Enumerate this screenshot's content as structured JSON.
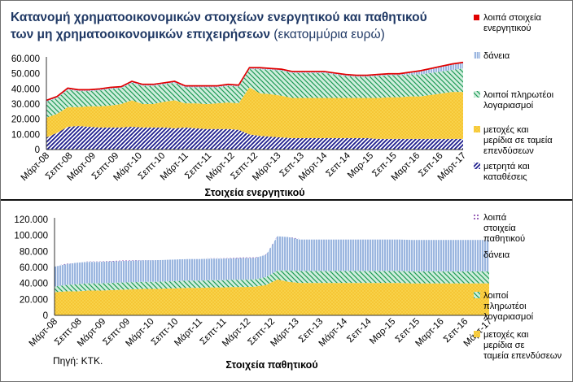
{
  "title": {
    "line1": "Κατανομή χρηματοοικονομικών  στοιχείων ενεργητικού και παθητικού",
    "line2": "των μη χρηματοοικονομικών  επιχειρήσεων",
    "unit": "(εκατομμύρια ευρώ)"
  },
  "source": "Πηγή: ΚΤΚ.",
  "colors": {
    "red": "#e00000",
    "green_fill": "#cfeedd",
    "green_hatch": "#1e9a55",
    "blue_fill": "#e7eefa",
    "blue_hatch": "#4f7fc4",
    "yellow_fill": "#f8d24a",
    "yellow_dots": "#f2a700",
    "navy_fill": "#ffffff",
    "navy_hatch": "#1e1e8e",
    "purple_dot": "#7a2fa1"
  },
  "chart_data": [
    {
      "type": "area",
      "stacked": true,
      "xlabel": "Στοιχεία ενεργητικού",
      "ylim": [
        0,
        60000
      ],
      "yticks": [
        "0",
        "10.000",
        "20.000",
        "30.000",
        "40.000",
        "50.000",
        "60.000"
      ],
      "xtick_labels": [
        "Μάρτ-08",
        "Σεπτ-08",
        "Μάρτ-09",
        "Σεπτ-09",
        "Μάρτ-10",
        "Σεπτ-10",
        "Μάρτ-11",
        "Σεπτ-11",
        "Μάρτ-12",
        "Σεπτ-12",
        "Μάρτ-13",
        "Σεπ-13",
        "Μάρτ-14",
        "Σεπ-14",
        "Μαρ-15",
        "Σεπ-15",
        "Μαρτ-16",
        "Σεπ-16",
        "Μάρτ-17"
      ],
      "series": [
        {
          "name": "μετρητά και καταθέσεις",
          "values": [
            8000,
            11000,
            15000,
            15500,
            15000,
            14500,
            14500,
            14500,
            15000,
            14500,
            14500,
            14500,
            14000,
            14500,
            14000,
            13500,
            13500,
            13500,
            13000,
            10000,
            9000,
            8500,
            8000,
            7500,
            7500,
            7500,
            7500,
            7500,
            7500,
            7500,
            7500,
            7000,
            7000,
            7000,
            7000,
            7000,
            7000,
            7000,
            7000,
            7000
          ]
        },
        {
          "name": "μετοχές και μερίδια σε ταμεία επενδύσεων",
          "values": [
            13000,
            12500,
            13000,
            12500,
            13500,
            14000,
            14500,
            15500,
            17500,
            15500,
            15500,
            17000,
            18500,
            16000,
            16500,
            16500,
            17000,
            17500,
            17500,
            31000,
            28000,
            28000,
            27500,
            26500,
            26500,
            26500,
            26500,
            26500,
            26500,
            26500,
            26500,
            27000,
            27500,
            27500,
            28000,
            28000,
            29000,
            30000,
            31000,
            31000
          ]
        },
        {
          "name": "λοιποί πληρωτέοι λογαριασμοί",
          "values": [
            10500,
            10500,
            11500,
            10500,
            10000,
            10500,
            11000,
            10500,
            11500,
            12000,
            12000,
            11500,
            11500,
            10500,
            10500,
            11000,
            10500,
            11000,
            11000,
            12000,
            16000,
            16000,
            16500,
            16500,
            16500,
            16500,
            16500,
            15500,
            14500,
            14000,
            14000,
            14500,
            14500,
            14500,
            14500,
            14500,
            14500,
            14500,
            14500,
            15500
          ]
        },
        {
          "name": "δάνεια",
          "values": [
            500,
            500,
            500,
            500,
            500,
            500,
            500,
            500,
            500,
            500,
            500,
            500,
            500,
            500,
            500,
            500,
            500,
            500,
            500,
            500,
            500,
            500,
            500,
            500,
            500,
            500,
            500,
            500,
            500,
            500,
            500,
            500,
            500,
            500,
            1000,
            2000,
            2500,
            3000,
            3500,
            3500
          ]
        },
        {
          "name": "λοιπά στοιχεία ενεργητικού",
          "values": [
            500,
            500,
            500,
            500,
            500,
            500,
            500,
            500,
            500,
            500,
            500,
            500,
            500,
            500,
            500,
            500,
            500,
            500,
            500,
            500,
            500,
            500,
            500,
            500,
            500,
            500,
            500,
            500,
            500,
            500,
            500,
            500,
            500,
            500,
            500,
            500,
            500,
            500,
            500,
            500
          ]
        }
      ]
    },
    {
      "type": "area",
      "stacked": true,
      "xlabel": "Στοιχεία παθητικού",
      "ylim": [
        0,
        120000
      ],
      "yticks": [
        "0",
        "20.000",
        "40.000",
        "60.000",
        "80.000",
        "100.000",
        "120.000"
      ],
      "xtick_labels": [
        "Μάρτ-08",
        "Σεπτ-08",
        "Μάρτ-09",
        "Σεπτ-09",
        "Μάρτ-10",
        "Σεπτ-10",
        "Μάρτ-11",
        "Σεπτ-11",
        "Μάρτ-12",
        "Σεπτ-12",
        "Μάρτ-13",
        "Σεπ-13",
        "Μάρτ-14",
        "Σεπ-14",
        "Μαρ-15",
        "Σεπ-15",
        "Μαρτ-16",
        "Σεπ-16",
        "Μάρτ-17"
      ],
      "series": [
        {
          "name": "μετοχές και μερίδια σε ταμεία επενδύσεων",
          "values": [
            29000,
            30000,
            30000,
            31000,
            31000,
            31500,
            32000,
            32500,
            33000,
            33000,
            33500,
            34000,
            34500,
            34500,
            35000,
            35000,
            35500,
            35500,
            36000,
            38000,
            45000,
            42000,
            40500,
            40500,
            40500,
            40500,
            40500,
            40500,
            40500,
            40500,
            40500,
            40500,
            40000,
            40000,
            40000,
            40000,
            40000,
            40000,
            40000,
            40000
          ]
        },
        {
          "name": "λοιποί πληρωτέοι λογαριασμοί",
          "values": [
            7000,
            8000,
            9000,
            9000,
            9000,
            9000,
            9000,
            9000,
            9000,
            9000,
            9000,
            9000,
            9000,
            9000,
            9000,
            9000,
            9000,
            9000,
            9000,
            10000,
            11000,
            14000,
            15000,
            15000,
            15000,
            15000,
            15000,
            15000,
            15000,
            15000,
            15000,
            15000,
            15000,
            15000,
            15000,
            15000,
            15000,
            15000,
            15000,
            15000
          ]
        },
        {
          "name": "δάνεια",
          "values": [
            25000,
            26000,
            27000,
            27000,
            27000,
            27000,
            27000,
            27000,
            27000,
            27000,
            27000,
            27000,
            27000,
            27000,
            27000,
            27000,
            27000,
            27500,
            27000,
            28000,
            43000,
            42000,
            39500,
            39500,
            39500,
            39500,
            39500,
            39500,
            39500,
            39500,
            39500,
            39500,
            39500,
            39500,
            39500,
            39500,
            39500,
            39500,
            39500,
            39500
          ]
        },
        {
          "name": "λοιπά στοιχεία παθητικού",
          "values": [
            500,
            500,
            500,
            500,
            500,
            500,
            500,
            500,
            500,
            500,
            500,
            500,
            500,
            500,
            500,
            500,
            500,
            500,
            500,
            500,
            500,
            500,
            500,
            500,
            500,
            500,
            500,
            500,
            500,
            500,
            500,
            500,
            500,
            500,
            500,
            500,
            500,
            500,
            500,
            500
          ]
        }
      ]
    }
  ],
  "legends": [
    [
      {
        "line1": "λοιπά στοιχεία",
        "line2": "ενεργητικού",
        "line3": "",
        "style": "red"
      },
      {
        "line1": "δάνεια",
        "line2": "",
        "line3": "",
        "style": "blue"
      },
      {
        "line1": "λοιποί πληρωτέοι",
        "line2": "λογαριασμοί",
        "line3": "",
        "style": "green"
      },
      {
        "line1": "μετοχές και",
        "line2": "μερίδια σε ταμεία",
        "line3": "επενδύσεων",
        "style": "yellow"
      },
      {
        "line1": "μετρητά και",
        "line2": "καταθέσεις",
        "line3": "",
        "style": "navy"
      }
    ],
    [
      {
        "line1": "λοιπά",
        "line2": "στοιχεία",
        "line3": "παθητικού",
        "style": "purple"
      },
      {
        "line1": "δάνεια",
        "line2": "",
        "line3": "",
        "style": "blue"
      },
      {
        "line1": "λοιποί",
        "line2": "πληρωτέοι",
        "line3": "λογαριασμοί",
        "style": "green"
      },
      {
        "line1": "μετοχές και",
        "line2": "μερίδια σε",
        "line3": "ταμεία επενδύσεων",
        "style": "yellow"
      }
    ]
  ]
}
